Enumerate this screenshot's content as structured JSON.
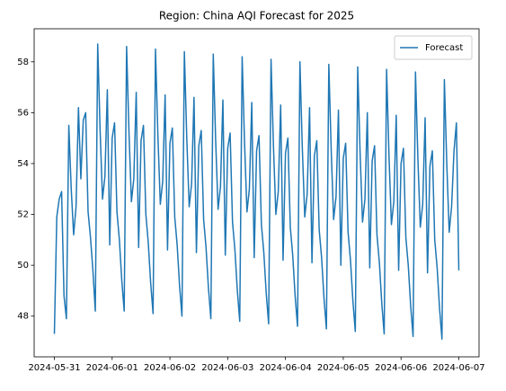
{
  "chart_data": {
    "type": "line",
    "title": "Region: China AQI Forecast for 2025",
    "x": [
      "2024-05-31T00:00",
      "2024-05-31T01:00",
      "2024-05-31T02:00",
      "2024-05-31T03:00",
      "2024-05-31T04:00",
      "2024-05-31T05:00",
      "2024-05-31T06:00",
      "2024-05-31T07:00",
      "2024-05-31T08:00",
      "2024-05-31T09:00",
      "2024-05-31T10:00",
      "2024-05-31T11:00",
      "2024-05-31T12:00",
      "2024-05-31T13:00",
      "2024-05-31T14:00",
      "2024-05-31T15:00",
      "2024-05-31T16:00",
      "2024-05-31T17:00",
      "2024-05-31T18:00",
      "2024-05-31T19:00",
      "2024-05-31T20:00",
      "2024-05-31T21:00",
      "2024-05-31T22:00",
      "2024-05-31T23:00",
      "2024-06-01T00:00",
      "2024-06-01T01:00",
      "2024-06-01T02:00",
      "2024-06-01T03:00",
      "2024-06-01T04:00",
      "2024-06-01T05:00",
      "2024-06-01T06:00",
      "2024-06-01T07:00",
      "2024-06-01T08:00",
      "2024-06-01T09:00",
      "2024-06-01T10:00",
      "2024-06-01T11:00",
      "2024-06-01T12:00",
      "2024-06-01T13:00",
      "2024-06-01T14:00",
      "2024-06-01T15:00",
      "2024-06-01T16:00",
      "2024-06-01T17:00",
      "2024-06-01T18:00",
      "2024-06-01T19:00",
      "2024-06-01T20:00",
      "2024-06-01T21:00",
      "2024-06-01T22:00",
      "2024-06-01T23:00",
      "2024-06-02T00:00",
      "2024-06-02T01:00",
      "2024-06-02T02:00",
      "2024-06-02T03:00",
      "2024-06-02T04:00",
      "2024-06-02T05:00",
      "2024-06-02T06:00",
      "2024-06-02T07:00",
      "2024-06-02T08:00",
      "2024-06-02T09:00",
      "2024-06-02T10:00",
      "2024-06-02T11:00",
      "2024-06-02T12:00",
      "2024-06-02T13:00",
      "2024-06-02T14:00",
      "2024-06-02T15:00",
      "2024-06-02T16:00",
      "2024-06-02T17:00",
      "2024-06-02T18:00",
      "2024-06-02T19:00",
      "2024-06-02T20:00",
      "2024-06-02T21:00",
      "2024-06-02T22:00",
      "2024-06-02T23:00",
      "2024-06-03T00:00",
      "2024-06-03T01:00",
      "2024-06-03T02:00",
      "2024-06-03T03:00",
      "2024-06-03T04:00",
      "2024-06-03T05:00",
      "2024-06-03T06:00",
      "2024-06-03T07:00",
      "2024-06-03T08:00",
      "2024-06-03T09:00",
      "2024-06-03T10:00",
      "2024-06-03T11:00",
      "2024-06-03T12:00",
      "2024-06-03T13:00",
      "2024-06-03T14:00",
      "2024-06-03T15:00",
      "2024-06-03T16:00",
      "2024-06-03T17:00",
      "2024-06-03T18:00",
      "2024-06-03T19:00",
      "2024-06-03T20:00",
      "2024-06-03T21:00",
      "2024-06-03T22:00",
      "2024-06-03T23:00",
      "2024-06-04T00:00",
      "2024-06-04T01:00",
      "2024-06-04T02:00",
      "2024-06-04T03:00",
      "2024-06-04T04:00",
      "2024-06-04T05:00",
      "2024-06-04T06:00",
      "2024-06-04T07:00",
      "2024-06-04T08:00",
      "2024-06-04T09:00",
      "2024-06-04T10:00",
      "2024-06-04T11:00",
      "2024-06-04T12:00",
      "2024-06-04T13:00",
      "2024-06-04T14:00",
      "2024-06-04T15:00",
      "2024-06-04T16:00",
      "2024-06-04T17:00",
      "2024-06-04T18:00",
      "2024-06-04T19:00",
      "2024-06-04T20:00",
      "2024-06-04T21:00",
      "2024-06-04T22:00",
      "2024-06-04T23:00",
      "2024-06-05T00:00",
      "2024-06-05T01:00",
      "2024-06-05T02:00",
      "2024-06-05T03:00",
      "2024-06-05T04:00",
      "2024-06-05T05:00",
      "2024-06-05T06:00",
      "2024-06-05T07:00",
      "2024-06-05T08:00",
      "2024-06-05T09:00",
      "2024-06-05T10:00",
      "2024-06-05T11:00",
      "2024-06-05T12:00",
      "2024-06-05T13:00",
      "2024-06-05T14:00",
      "2024-06-05T15:00",
      "2024-06-05T16:00",
      "2024-06-05T17:00",
      "2024-06-05T18:00",
      "2024-06-05T19:00",
      "2024-06-05T20:00",
      "2024-06-05T21:00",
      "2024-06-05T22:00",
      "2024-06-05T23:00",
      "2024-06-06T00:00",
      "2024-06-06T01:00",
      "2024-06-06T02:00",
      "2024-06-06T03:00",
      "2024-06-06T04:00",
      "2024-06-06T05:00",
      "2024-06-06T06:00",
      "2024-06-06T07:00",
      "2024-06-06T08:00",
      "2024-06-06T09:00",
      "2024-06-06T10:00",
      "2024-06-06T11:00",
      "2024-06-06T12:00",
      "2024-06-06T13:00",
      "2024-06-06T14:00",
      "2024-06-06T15:00",
      "2024-06-06T16:00",
      "2024-06-06T17:00",
      "2024-06-06T18:00",
      "2024-06-06T19:00",
      "2024-06-06T20:00",
      "2024-06-06T21:00",
      "2024-06-06T22:00",
      "2024-06-06T23:00",
      "2024-06-07T00:00"
    ],
    "series": [
      {
        "name": "Forecast",
        "color": "#1f77b4",
        "values": [
          47.3,
          51.9,
          52.6,
          52.9,
          48.8,
          47.9,
          55.5,
          53.0,
          51.2,
          52.3,
          56.2,
          53.4,
          55.7,
          56.0,
          52.1,
          51.1,
          49.8,
          48.2,
          58.7,
          55.3,
          52.6,
          53.5,
          56.9,
          50.8,
          55.0,
          55.6,
          52.1,
          51.0,
          49.4,
          48.2,
          58.6,
          55.2,
          52.5,
          53.4,
          56.8,
          50.7,
          54.9,
          55.5,
          52.0,
          50.9,
          49.3,
          48.1,
          58.5,
          55.1,
          52.4,
          53.3,
          56.7,
          50.6,
          54.8,
          55.4,
          51.9,
          50.8,
          49.2,
          48.0,
          58.4,
          55.0,
          52.3,
          53.2,
          56.6,
          50.5,
          54.7,
          55.3,
          51.8,
          50.7,
          49.1,
          47.9,
          58.3,
          54.9,
          52.2,
          53.1,
          56.5,
          50.4,
          54.6,
          55.2,
          51.7,
          50.6,
          49.0,
          47.8,
          58.2,
          54.8,
          52.1,
          53.0,
          56.4,
          50.3,
          54.5,
          55.1,
          51.6,
          50.5,
          48.9,
          47.7,
          58.1,
          54.7,
          52.0,
          52.9,
          56.3,
          50.2,
          54.4,
          55.0,
          51.5,
          50.4,
          48.8,
          47.6,
          58.0,
          54.6,
          51.9,
          52.8,
          56.2,
          50.1,
          54.3,
          54.9,
          51.4,
          50.3,
          48.7,
          47.5,
          57.9,
          54.5,
          51.8,
          52.7,
          56.1,
          50.0,
          54.2,
          54.8,
          51.3,
          50.2,
          48.6,
          47.4,
          57.8,
          54.4,
          51.7,
          52.6,
          56.0,
          49.9,
          54.1,
          54.7,
          51.2,
          50.1,
          48.5,
          47.3,
          57.7,
          54.3,
          51.6,
          52.5,
          55.9,
          49.8,
          54.0,
          54.6,
          51.1,
          50.0,
          48.4,
          47.2,
          57.6,
          54.2,
          51.5,
          52.4,
          55.8,
          49.7,
          53.9,
          54.5,
          51.0,
          49.9,
          48.3,
          47.1,
          57.3,
          54.0,
          51.3,
          52.3,
          54.5,
          55.6,
          49.8
        ]
      }
    ],
    "xlim": [
      "2024-05-30T15:36",
      "2024-06-07T08:24"
    ],
    "xticks": [
      "2024-05-31",
      "2024-06-01",
      "2024-06-02",
      "2024-06-03",
      "2024-06-04",
      "2024-06-05",
      "2024-06-06",
      "2024-06-07"
    ],
    "ylim": [
      46.4,
      59.3
    ],
    "yticks": [
      48,
      50,
      52,
      54,
      56,
      58
    ],
    "legend": "upper right",
    "grid": false
  }
}
